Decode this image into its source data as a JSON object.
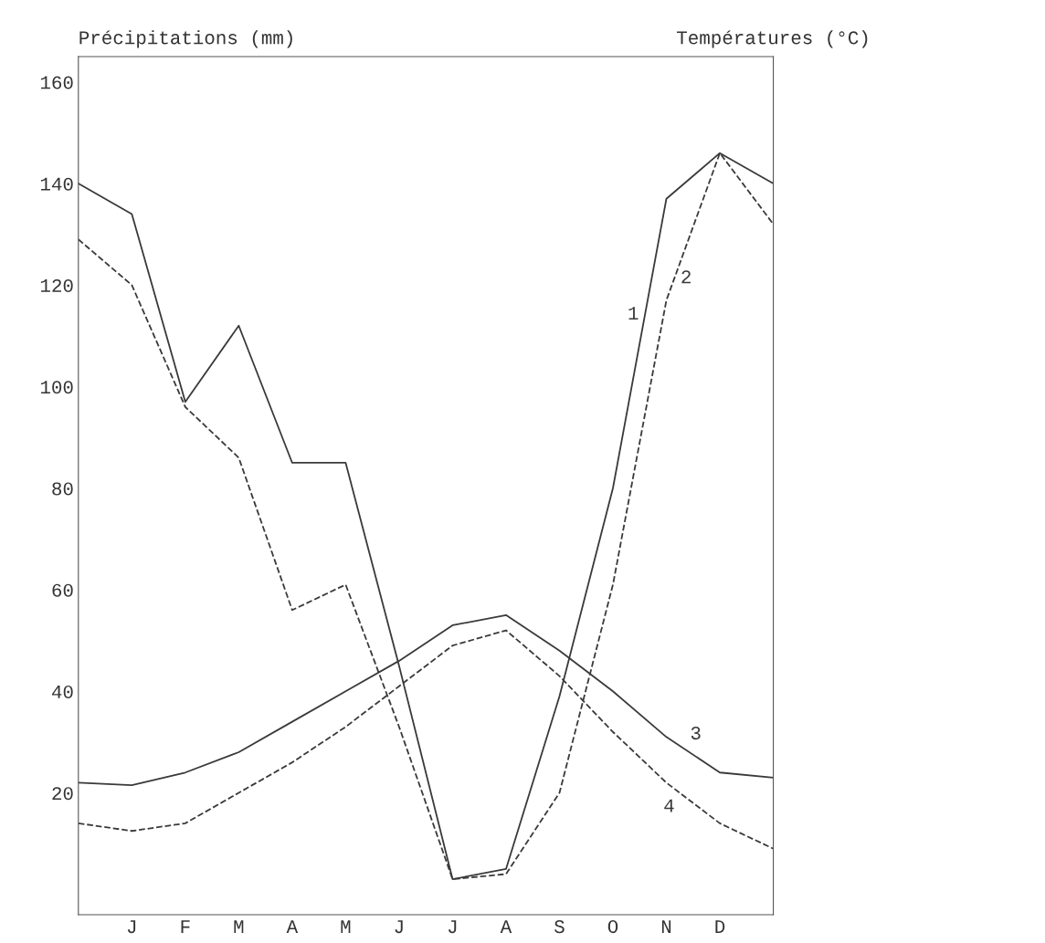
{
  "chart_data": {
    "type": "line",
    "ylabel": "Précipitations (mm)",
    "y2label": "Températures (°C)",
    "categories": [
      null,
      "J",
      "F",
      "M",
      "A",
      "M",
      "J",
      "J",
      "A",
      "S",
      "O",
      "N",
      "D",
      null
    ],
    "ylim": [
      -4,
      165
    ],
    "yticks": [
      20,
      40,
      60,
      80,
      100,
      120,
      140,
      160
    ],
    "grid": false,
    "legend": false,
    "marker": "none",
    "series": [
      {
        "name": "1",
        "color": "#3a3a3a",
        "line_style": "solid",
        "values": [
          140,
          134,
          97,
          112,
          85,
          85,
          45,
          3,
          5,
          39,
          80,
          137,
          146,
          140
        ]
      },
      {
        "name": "2",
        "color": "#3a3a3a",
        "line_style": "dashed",
        "values": [
          129,
          120,
          96,
          86,
          56,
          61,
          33,
          3,
          4,
          20,
          61,
          117,
          146,
          132
        ]
      },
      {
        "name": "3",
        "color": "#3a3a3a",
        "line_style": "solid",
        "values": [
          22,
          21.5,
          24,
          28,
          34,
          40,
          46,
          53,
          55,
          48,
          40,
          31,
          24,
          23
        ]
      },
      {
        "name": "4",
        "color": "#3a3a3a",
        "line_style": "dashed",
        "values": [
          14,
          12.5,
          14,
          20,
          26,
          33,
          41,
          49,
          52,
          43,
          32,
          22,
          14,
          9
        ]
      }
    ]
  }
}
